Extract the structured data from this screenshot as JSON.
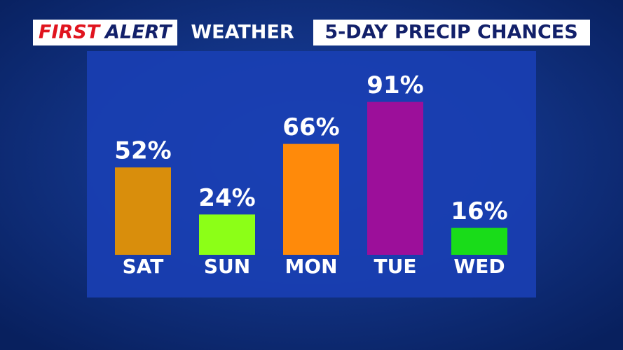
{
  "header": {
    "brand_first": "FIRST",
    "brand_second": "ALERT",
    "brand_third": "WEATHER"
  },
  "chart_data": {
    "type": "bar",
    "title": "5-DAY PRECIP CHANCES",
    "categories": [
      "SAT",
      "SUN",
      "MON",
      "TUE",
      "WED"
    ],
    "values": [
      52,
      24,
      66,
      91,
      16
    ],
    "value_labels": [
      "52%",
      "24%",
      "66%",
      "91%",
      "16%"
    ],
    "colors": [
      "#d98e0c",
      "#8cff17",
      "#ff8a0a",
      "#9c0f9a",
      "#19dc19"
    ]
  }
}
